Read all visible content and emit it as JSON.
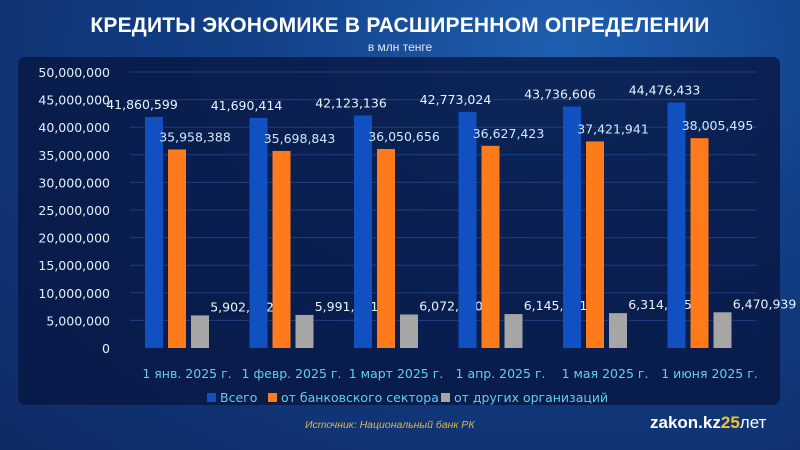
{
  "chart_data": {
    "type": "bar",
    "title": "КРЕДИТЫ ЭКОНОМИКЕ В РАСШИРЕННОМ ОПРЕДЕЛЕНИИ",
    "subtitle": "в млн тенге",
    "categories": [
      "1 янв. 2025 г.",
      "1 февр. 2025 г.",
      "1 март 2025 г.",
      "1 апр. 2025 г.",
      "1 мая 2025 г.",
      "1 июня 2025 г."
    ],
    "ylim": [
      0,
      50000000
    ],
    "yticks": [
      0,
      5000000,
      10000000,
      15000000,
      20000000,
      25000000,
      30000000,
      35000000,
      40000000,
      45000000,
      50000000
    ],
    "ytick_labels": [
      "0",
      "5,000,000",
      "10,000,000",
      "15,000,000",
      "20,000,000",
      "25,000,000",
      "30,000,000",
      "35,000,000",
      "40,000,000",
      "45,000,000",
      "50,000,000"
    ],
    "grid": true,
    "legend_position": "bottom",
    "series": [
      {
        "name": "Всего",
        "color": "#1050c0",
        "values": [
          41860599,
          41690414,
          42123136,
          42773024,
          43736606,
          44476433
        ],
        "labels": [
          "41,860,599",
          "41,690,414",
          "42,123,136",
          "42,773,024",
          "43,736,606",
          "44,476,433"
        ]
      },
      {
        "name": "от банковского сектора",
        "color": "#ff7a1a",
        "values": [
          35958388,
          35698843,
          36050656,
          36627423,
          37421941,
          38005495
        ],
        "labels": [
          "35,958,388",
          "35,698,843",
          "36,050,656",
          "36,627,423",
          "37,421,941",
          "38,005,495"
        ]
      },
      {
        "name": "от других организаций",
        "color": "#a6a6a6",
        "values": [
          5902212,
          5991571,
          6072480,
          6145601,
          6314665,
          6470939
        ],
        "labels": [
          "5,902,212",
          "5,991,571",
          "6,072,480",
          "6,145,601",
          "6,314,665",
          "6,470,939"
        ]
      }
    ]
  },
  "footer": {
    "source": "Источник: Национальный банк РК",
    "logo_text": "zakon.kz",
    "logo_years": "25",
    "logo_suffix": "лет"
  }
}
